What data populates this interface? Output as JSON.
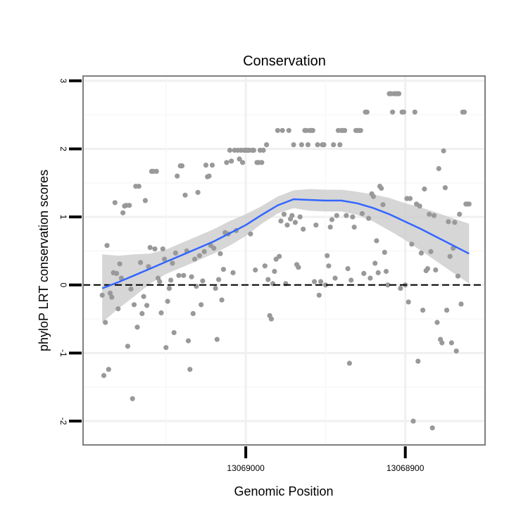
{
  "chart_data": {
    "type": "scatter",
    "title": "Conservation",
    "xlabel": "Genomic Position",
    "ylabel": "phyloP LRT conservation scores",
    "xlim": [
      13069102,
      13068850
    ],
    "x_reversed": true,
    "ylim": [
      -2.35,
      3.07
    ],
    "x_ticks": [
      13069000,
      13068900
    ],
    "x_tick_labels": [
      "13069000",
      "13068900"
    ],
    "y_ticks": [
      -2,
      -1,
      0,
      1,
      2,
      3
    ],
    "y_tick_labels": [
      "-2",
      "-1",
      "0",
      "1",
      "2",
      "3"
    ],
    "grid": true,
    "reference_line": {
      "y": 0,
      "style": "dashed"
    },
    "colors": {
      "points": "#999999",
      "smooth": "#3366ff",
      "ribbon": "#cccccc",
      "reference": "#000000"
    },
    "points": [
      [
        13069090,
        -0.15
      ],
      [
        13069089,
        -1.33
      ],
      [
        13069088,
        -0.55
      ],
      [
        13069087,
        0.58
      ],
      [
        13069086,
        -1.24
      ],
      [
        13069085,
        -0.12
      ],
      [
        13069084,
        -0.18
      ],
      [
        13069083,
        0.18
      ],
      [
        13069082,
        1.21
      ],
      [
        13069081,
        0.17
      ],
      [
        13069080,
        -0.35
      ],
      [
        13069079,
        0.31
      ],
      [
        13069078,
        0.1
      ],
      [
        13069077,
        1.06
      ],
      [
        13069076,
        1.16
      ],
      [
        13069075,
        1.17
      ],
      [
        13069074,
        -0.9
      ],
      [
        13069073,
        1.17
      ],
      [
        13069072,
        -0.06
      ],
      [
        13069071,
        -1.67
      ],
      [
        13069070,
        -0.29
      ],
      [
        13069069,
        1.45
      ],
      [
        13069068,
        -0.62
      ],
      [
        13069067,
        1.45
      ],
      [
        13069066,
        0.33
      ],
      [
        13069065,
        -0.42
      ],
      [
        13069064,
        -0.17
      ],
      [
        13069063,
        1.24
      ],
      [
        13069062,
        -0.3
      ],
      [
        13069061,
        0.27
      ],
      [
        13069060,
        0.55
      ],
      [
        13069059,
        1.67
      ],
      [
        13069058,
        1.67
      ],
      [
        13069057,
        0.53
      ],
      [
        13069056,
        1.67
      ],
      [
        13069055,
        0.1
      ],
      [
        13069054,
        0.05
      ],
      [
        13069053,
        -0.41
      ],
      [
        13069052,
        0.53
      ],
      [
        13069051,
        0.38
      ],
      [
        13069050,
        -0.92
      ],
      [
        13069049,
        -0.24
      ],
      [
        13069048,
        -0.05
      ],
      [
        13069047,
        0.07
      ],
      [
        13069046,
        0.32
      ],
      [
        13069045,
        -0.7
      ],
      [
        13069044,
        0.47
      ],
      [
        13069043,
        1.6
      ],
      [
        13069042,
        0.14
      ],
      [
        13069041,
        1.75
      ],
      [
        13069040,
        1.75
      ],
      [
        13069039,
        0.14
      ],
      [
        13069038,
        1.32
      ],
      [
        13069037,
        0.5
      ],
      [
        13069036,
        -0.82
      ],
      [
        13069035,
        -1.24
      ],
      [
        13069034,
        0.12
      ],
      [
        13069033,
        -0.42
      ],
      [
        13069032,
        0.38
      ],
      [
        13069031,
        -0.02
      ],
      [
        13069030,
        1.36
      ],
      [
        13069029,
        0.43
      ],
      [
        13069028,
        -0.29
      ],
      [
        13069027,
        0.06
      ],
      [
        13069026,
        0.49
      ],
      [
        13069025,
        1.76
      ],
      [
        13069024,
        1.59
      ],
      [
        13069023,
        1.6
      ],
      [
        13069022,
        0.58
      ],
      [
        13069021,
        1.76
      ],
      [
        13069020,
        0.54
      ],
      [
        13069019,
        -0.05
      ],
      [
        13069018,
        -0.8
      ],
      [
        13069017,
        0.08
      ],
      [
        13069016,
        0.46
      ],
      [
        13069015,
        -0.22
      ],
      [
        13069014,
        0.23
      ],
      [
        13069013,
        0.77
      ],
      [
        13069012,
        1.8
      ],
      [
        13069011,
        0.75
      ],
      [
        13069010,
        1.98
      ],
      [
        13069009,
        1.82
      ],
      [
        13069008,
        0.18
      ],
      [
        13069007,
        1.98
      ],
      [
        13069006,
        0.8
      ],
      [
        13069005,
        1.98
      ],
      [
        13069004,
        1.85
      ],
      [
        13069003,
        1.98
      ],
      [
        13069002,
        1.8
      ],
      [
        13069001,
        1.98
      ],
      [
        13069000,
        1.98
      ],
      [
        13068999,
        1.98
      ],
      [
        13068998,
        1.98
      ],
      [
        13068997,
        0.75
      ],
      [
        13068996,
        1.98
      ],
      [
        13068995,
        1.98
      ],
      [
        13068994,
        0.22
      ],
      [
        13068993,
        1.8
      ],
      [
        13068992,
        1.8
      ],
      [
        13068991,
        1.98
      ],
      [
        13068990,
        1.8
      ],
      [
        13068989,
        1.98
      ],
      [
        13068988,
        0.28
      ],
      [
        13068987,
        2.06
      ],
      [
        13068986,
        0.08
      ],
      [
        13068985,
        -0.45
      ],
      [
        13068984,
        -0.5
      ],
      [
        13068983,
        0.02
      ],
      [
        13068982,
        0.2
      ],
      [
        13068981,
        0.38
      ],
      [
        13068980,
        2.27
      ],
      [
        13068979,
        0.42
      ],
      [
        13068978,
        0.94
      ],
      [
        13068977,
        2.27
      ],
      [
        13068976,
        1.04
      ],
      [
        13068975,
        0.02
      ],
      [
        13068974,
        0.88
      ],
      [
        13068973,
        2.27
      ],
      [
        13068972,
        0.97
      ],
      [
        13068971,
        1.02
      ],
      [
        13068970,
        2.06
      ],
      [
        13068969,
        0.92
      ],
      [
        13068968,
        0.3
      ],
      [
        13068967,
        0.26
      ],
      [
        13068966,
        1.0
      ],
      [
        13068965,
        2.06
      ],
      [
        13068964,
        0.82
      ],
      [
        13068963,
        2.27
      ],
      [
        13068962,
        2.27
      ],
      [
        13068961,
        2.06
      ],
      [
        13068960,
        2.27
      ],
      [
        13068959,
        2.27
      ],
      [
        13068958,
        2.27
      ],
      [
        13068957,
        0.05
      ],
      [
        13068956,
        0.88
      ],
      [
        13068955,
        2.06
      ],
      [
        13068954,
        -0.15
      ],
      [
        13068953,
        0.05
      ],
      [
        13068952,
        2.06
      ],
      [
        13068951,
        2.06
      ],
      [
        13068950,
        0.0
      ],
      [
        13068949,
        0.43
      ],
      [
        13068948,
        0.28
      ],
      [
        13068947,
        0.85
      ],
      [
        13068946,
        0.96
      ],
      [
        13068945,
        2.06
      ],
      [
        13068944,
        0.1
      ],
      [
        13068943,
        1.02
      ],
      [
        13068942,
        2.27
      ],
      [
        13068941,
        2.06
      ],
      [
        13068940,
        2.27
      ],
      [
        13068939,
        2.27
      ],
      [
        13068938,
        2.27
      ],
      [
        13068937,
        1.02
      ],
      [
        13068936,
        0.24
      ],
      [
        13068935,
        -1.15
      ],
      [
        13068934,
        0.07
      ],
      [
        13068933,
        1.0
      ],
      [
        13068932,
        0.85
      ],
      [
        13068931,
        2.27
      ],
      [
        13068930,
        2.27
      ],
      [
        13068929,
        2.27
      ],
      [
        13068928,
        2.27
      ],
      [
        13068927,
        1.05
      ],
      [
        13068926,
        0.17
      ],
      [
        13068925,
        2.54
      ],
      [
        13068924,
        2.54
      ],
      [
        13068923,
        0.98
      ],
      [
        13068922,
        0.1
      ],
      [
        13068921,
        1.34
      ],
      [
        13068920,
        1.3
      ],
      [
        13068919,
        0.32
      ],
      [
        13068918,
        0.65
      ],
      [
        13068917,
        0.18
      ],
      [
        13068916,
        1.45
      ],
      [
        13068915,
        1.42
      ],
      [
        13068914,
        1.18
      ],
      [
        13068913,
        0.48
      ],
      [
        13068912,
        0.2
      ],
      [
        13068911,
        0.0
      ],
      [
        13068910,
        2.81
      ],
      [
        13068909,
        2.81
      ],
      [
        13068908,
        2.54
      ],
      [
        13068907,
        2.81
      ],
      [
        13068906,
        2.81
      ],
      [
        13068905,
        2.81
      ],
      [
        13068904,
        2.81
      ],
      [
        13068903,
        -0.05
      ],
      [
        13068902,
        2.54
      ],
      [
        13068901,
        2.54
      ],
      [
        13068900,
        0.0
      ],
      [
        13068899,
        1.27
      ],
      [
        13068898,
        -0.25
      ],
      [
        13068897,
        1.27
      ],
      [
        13068896,
        0.6
      ],
      [
        13068895,
        -2.0
      ],
      [
        13068894,
        2.54
      ],
      [
        13068893,
        1.19
      ],
      [
        13068892,
        -1.12
      ],
      [
        13068891,
        1.16
      ],
      [
        13068890,
        0.47
      ],
      [
        13068889,
        -0.37
      ],
      [
        13068888,
        1.41
      ],
      [
        13068887,
        0.21
      ],
      [
        13068886,
        0.24
      ],
      [
        13068885,
        1.04
      ],
      [
        13068884,
        0.49
      ],
      [
        13068883,
        -2.1
      ],
      [
        13068882,
        1.02
      ],
      [
        13068881,
        0.22
      ],
      [
        13068880,
        -0.55
      ],
      [
        13068879,
        1.71
      ],
      [
        13068878,
        -0.8
      ],
      [
        13068877,
        -0.85
      ],
      [
        13068876,
        1.97
      ],
      [
        13068875,
        1.43
      ],
      [
        13068874,
        -0.37
      ],
      [
        13068873,
        0.93
      ],
      [
        13068872,
        0.42
      ],
      [
        13068871,
        -0.85
      ],
      [
        13068870,
        0.54
      ],
      [
        13068869,
        0.92
      ],
      [
        13068868,
        -0.97
      ],
      [
        13068867,
        0.13
      ],
      [
        13068866,
        1.04
      ],
      [
        13068865,
        -0.28
      ],
      [
        13068864,
        2.54
      ],
      [
        13068863,
        2.54
      ],
      [
        13068862,
        1.19
      ],
      [
        13068861,
        1.19
      ],
      [
        13068860,
        1.19
      ]
    ],
    "smooth_fit": {
      "x": [
        13069090,
        13069080,
        13069070,
        13069060,
        13069050,
        13069040,
        13069030,
        13069020,
        13069010,
        13069000,
        13068990,
        13068980,
        13068970,
        13068960,
        13068950,
        13068940,
        13068930,
        13068920,
        13068910,
        13068900,
        13068890,
        13068880,
        13068870,
        13068860
      ],
      "y": [
        -0.05,
        0.04,
        0.14,
        0.24,
        0.34,
        0.44,
        0.54,
        0.64,
        0.76,
        0.88,
        1.03,
        1.17,
        1.26,
        1.25,
        1.24,
        1.24,
        1.2,
        1.13,
        1.04,
        0.93,
        0.82,
        0.7,
        0.58,
        0.46
      ],
      "ymin": [
        -0.55,
        -0.35,
        -0.17,
        0.02,
        0.16,
        0.26,
        0.36,
        0.46,
        0.58,
        0.72,
        0.9,
        1.05,
        1.13,
        1.09,
        1.08,
        1.08,
        1.03,
        0.93,
        0.8,
        0.66,
        0.5,
        0.34,
        0.18,
        0.02
      ],
      "ymax": [
        0.45,
        0.43,
        0.45,
        0.46,
        0.52,
        0.62,
        0.72,
        0.82,
        0.94,
        1.04,
        1.16,
        1.3,
        1.39,
        1.41,
        1.4,
        1.4,
        1.37,
        1.33,
        1.28,
        1.2,
        1.14,
        1.06,
        0.98,
        0.9
      ]
    }
  }
}
